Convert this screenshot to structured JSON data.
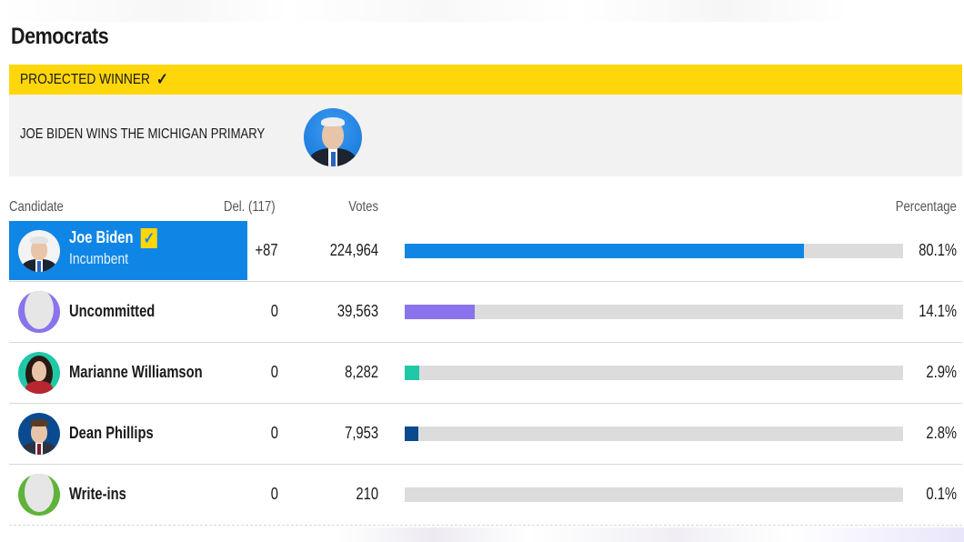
{
  "section": {
    "title": "Democrats"
  },
  "winner": {
    "banner": "PROJECTED WINNER",
    "check_icon": "✓",
    "headline": "JOE BIDEN WINS THE MICHIGAN PRIMARY"
  },
  "table": {
    "headers": {
      "candidate": "Candidate",
      "delegates": "Del. (117)",
      "votes": "Votes",
      "percentage": "Percentage"
    },
    "rows": [
      {
        "name": "Joe Biden",
        "subtitle": "Incumbent",
        "delegates": "+87",
        "votes": "224,964",
        "percentage": "80.1%",
        "fraction": 0.801,
        "color": "#0f86e6",
        "winner": true
      },
      {
        "name": "Uncommitted",
        "delegates": "0",
        "votes": "39,563",
        "percentage": "14.1%",
        "fraction": 0.141,
        "color": "#8a73ec"
      },
      {
        "name": "Marianne Williamson",
        "delegates": "0",
        "votes": "8,282",
        "percentage": "2.9%",
        "fraction": 0.029,
        "color": "#1fc9a8"
      },
      {
        "name": "Dean Phillips",
        "delegates": "0",
        "votes": "7,953",
        "percentage": "2.8%",
        "fraction": 0.028,
        "color": "#0b4a8f"
      },
      {
        "name": "Write-ins",
        "delegates": "0",
        "votes": "210",
        "percentage": "0.1%",
        "fraction": 0.001,
        "color": "#dcdcdc"
      }
    ]
  },
  "colors": {
    "banner": "#ffd60a",
    "winner_cell": "#0f86e6"
  }
}
